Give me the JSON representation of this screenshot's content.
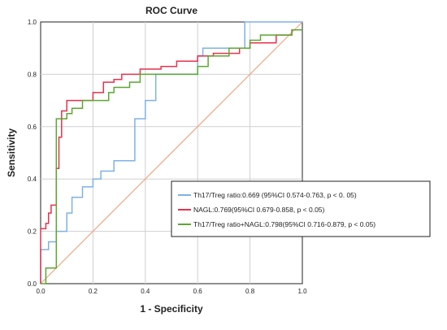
{
  "chart_data": {
    "type": "line",
    "title": "ROC Curve",
    "xlabel": "1 - Specificity",
    "ylabel": "Sensitivity",
    "xlim": [
      0,
      1
    ],
    "ylim": [
      0,
      1
    ],
    "xticks": [
      "0.0",
      "0.2",
      "0.4",
      "0.6",
      "0.8",
      "1.0"
    ],
    "yticks": [
      "0.0",
      "0.2",
      "0.4",
      "0.6",
      "0.8",
      "1.0"
    ],
    "grid": true,
    "legend_position": "right-center",
    "reference_line": {
      "x": [
        0,
        1
      ],
      "y": [
        0,
        1
      ],
      "color": "#f4a582"
    },
    "series": [
      {
        "name": "Th17/Treg ratio:0.669 (95%CI 0.574-0.763,  p < 0. 05)",
        "color": "#7fb2e5",
        "x": [
          0,
          0,
          0.03,
          0.03,
          0.06,
          0.06,
          0.1,
          0.1,
          0.12,
          0.12,
          0.16,
          0.16,
          0.2,
          0.2,
          0.23,
          0.23,
          0.28,
          0.28,
          0.36,
          0.36,
          0.4,
          0.4,
          0.44,
          0.44,
          0.46,
          0.46,
          0.6,
          0.6,
          0.62,
          0.62,
          0.78,
          0.78,
          1
        ],
        "y": [
          0,
          0.13,
          0.13,
          0.16,
          0.16,
          0.2,
          0.2,
          0.27,
          0.27,
          0.33,
          0.33,
          0.37,
          0.37,
          0.4,
          0.4,
          0.43,
          0.43,
          0.47,
          0.47,
          0.63,
          0.63,
          0.7,
          0.7,
          0.8,
          0.8,
          0.8,
          0.8,
          0.87,
          0.87,
          0.9,
          0.9,
          1,
          1
        ]
      },
      {
        "name": "NAGL:0.769(95%CI 0.679-0.858,  p < 0.05)",
        "color": "#e8314e",
        "x": [
          0,
          0,
          0.02,
          0.02,
          0.03,
          0.03,
          0.04,
          0.04,
          0.06,
          0.06,
          0.07,
          0.07,
          0.08,
          0.08,
          0.1,
          0.1,
          0.14,
          0.14,
          0.2,
          0.2,
          0.24,
          0.24,
          0.28,
          0.28,
          0.31,
          0.31,
          0.38,
          0.38,
          0.46,
          0.46,
          0.52,
          0.52,
          0.6,
          0.6,
          0.66,
          0.66,
          0.76,
          0.76,
          0.8,
          0.8,
          0.9,
          0.9,
          0.96,
          0.96,
          1
        ],
        "y": [
          0,
          0.21,
          0.21,
          0.23,
          0.23,
          0.27,
          0.27,
          0.3,
          0.3,
          0.44,
          0.44,
          0.56,
          0.56,
          0.66,
          0.66,
          0.7,
          0.7,
          0.7,
          0.7,
          0.73,
          0.73,
          0.77,
          0.77,
          0.78,
          0.78,
          0.8,
          0.8,
          0.82,
          0.82,
          0.83,
          0.83,
          0.85,
          0.85,
          0.87,
          0.87,
          0.88,
          0.88,
          0.9,
          0.9,
          0.92,
          0.92,
          0.95,
          0.95,
          0.97,
          0.97
        ]
      },
      {
        "name": "Th17/Treg ratio+NAGL:0.798(95%CI 0.716-0.879,  p < 0.05)",
        "color": "#5aa832",
        "x": [
          0,
          0.02,
          0.02,
          0.06,
          0.06,
          0.1,
          0.1,
          0.12,
          0.12,
          0.16,
          0.16,
          0.26,
          0.26,
          0.28,
          0.28,
          0.34,
          0.34,
          0.38,
          0.38,
          0.6,
          0.6,
          0.64,
          0.64,
          0.72,
          0.72,
          0.8,
          0.8,
          0.84,
          0.84,
          0.96,
          0.96,
          1
        ],
        "y": [
          0,
          0,
          0.06,
          0.06,
          0.63,
          0.63,
          0.65,
          0.65,
          0.67,
          0.67,
          0.7,
          0.7,
          0.73,
          0.73,
          0.75,
          0.75,
          0.77,
          0.77,
          0.8,
          0.8,
          0.83,
          0.83,
          0.87,
          0.87,
          0.9,
          0.9,
          0.93,
          0.93,
          0.95,
          0.95,
          0.97,
          0.97
        ]
      }
    ]
  }
}
